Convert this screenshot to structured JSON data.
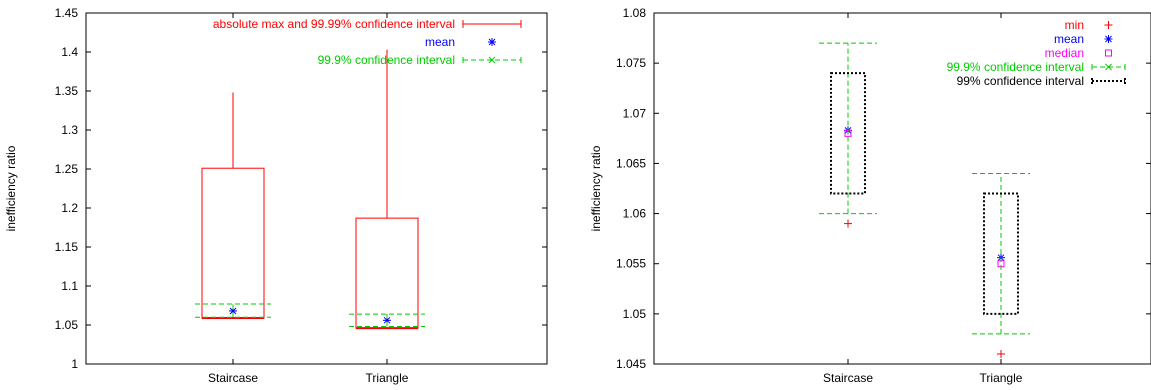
{
  "chart_data": [
    {
      "type": "box",
      "ylabel": "inefficiency ratio",
      "ylim": [
        1.0,
        1.45
      ],
      "yticks": [
        "1",
        "1.05",
        "1.1",
        "1.15",
        "1.2",
        "1.25",
        "1.3",
        "1.35",
        "1.4",
        "1.45"
      ],
      "ytick_values": [
        1.0,
        1.05,
        1.1,
        1.15,
        1.2,
        1.25,
        1.3,
        1.35,
        1.4,
        1.45
      ],
      "categories": [
        "Staircase",
        "Triangle"
      ],
      "grid": false,
      "legend_position": "top-right",
      "series": [
        {
          "name": "absolute max and 99.99% confidence interval",
          "color": "#ff0000",
          "kind": "candlestick",
          "box_low": [
            1.059,
            1.046
          ],
          "box_high": [
            1.251,
            1.187
          ],
          "whisker_high": [
            1.348,
            1.403
          ]
        },
        {
          "name": "mean",
          "color": "#0000ff",
          "kind": "points",
          "values": [
            1.068,
            1.056
          ]
        },
        {
          "name": "99.9% confidence interval",
          "color": "#00cc00",
          "kind": "errorbars",
          "low": [
            1.06,
            1.048
          ],
          "high": [
            1.077,
            1.064
          ]
        }
      ]
    },
    {
      "type": "box",
      "ylabel": "inefficiency ratio",
      "ylim": [
        1.045,
        1.08
      ],
      "yticks": [
        "1.045",
        "1.05",
        "1.055",
        "1.06",
        "1.065",
        "1.07",
        "1.075",
        "1.08"
      ],
      "ytick_values": [
        1.045,
        1.05,
        1.055,
        1.06,
        1.065,
        1.07,
        1.075,
        1.08
      ],
      "categories": [
        "Staircase",
        "Triangle"
      ],
      "grid": false,
      "legend_position": "top-right",
      "series": [
        {
          "name": "min",
          "color": "#ff0000",
          "kind": "points",
          "values": [
            1.059,
            1.046
          ]
        },
        {
          "name": "mean",
          "color": "#0000ff",
          "kind": "points",
          "values": [
            1.0683,
            1.0556
          ]
        },
        {
          "name": "median",
          "color": "#ff00ff",
          "kind": "points",
          "values": [
            1.068,
            1.055
          ]
        },
        {
          "name": "99.9% confidence interval",
          "color": "#00cc00",
          "kind": "errorbars",
          "low": [
            1.06,
            1.048
          ],
          "high": [
            1.077,
            1.064
          ]
        },
        {
          "name": "99% confidence interval",
          "color": "#000000",
          "kind": "dotted-box",
          "low": [
            1.062,
            1.05
          ],
          "high": [
            1.074,
            1.062
          ]
        }
      ]
    }
  ]
}
